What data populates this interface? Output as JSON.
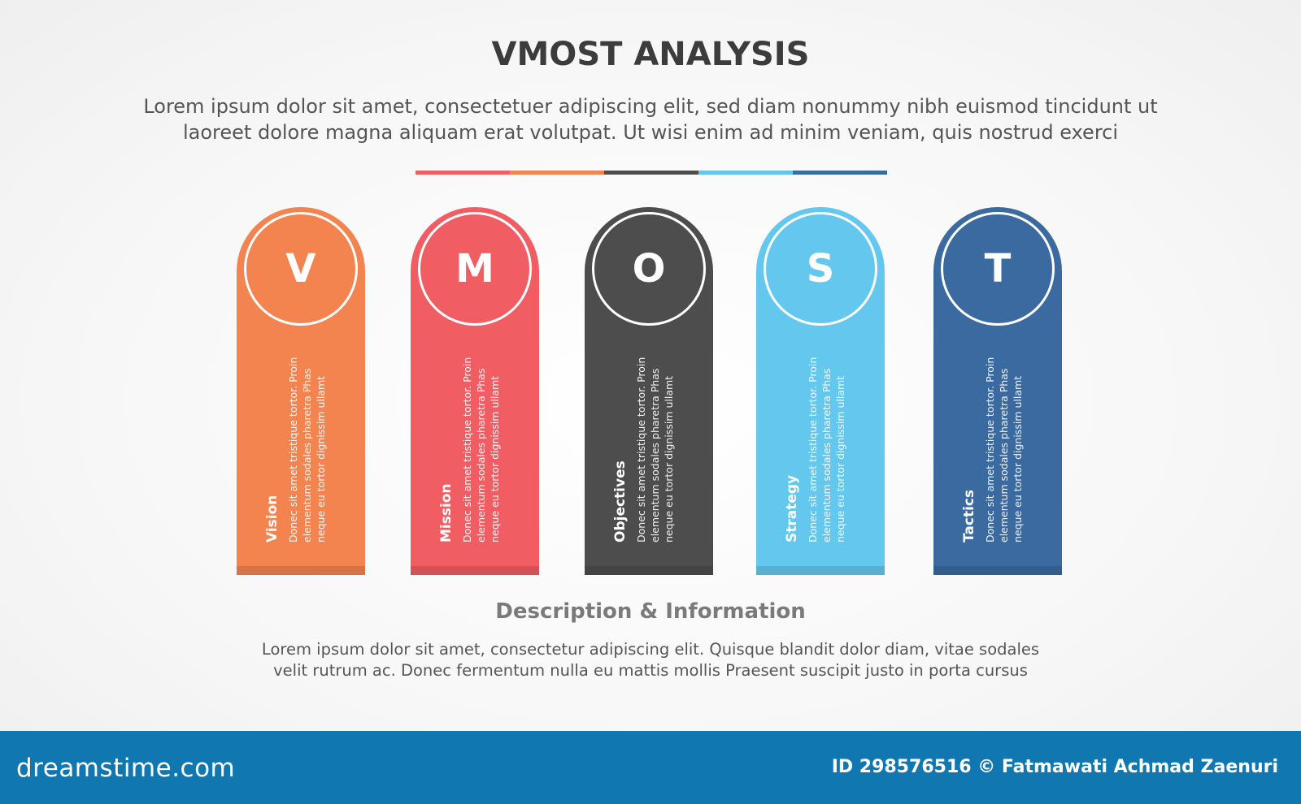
{
  "title": "VMOST ANALYSIS",
  "subtitle": [
    "Lorem ipsum dolor sit amet, consectetuer adipiscing elit, sed diam nonummy nibh euismod tincidunt ut",
    "laoreet dolore magna aliquam erat volutpat. Ut wisi enim ad minim veniam, quis nostrud exerci"
  ],
  "color_bar": [
    "#ef5f64",
    "#f4844f",
    "#4d4d4d",
    "#62c7ed",
    "#3a6aa0"
  ],
  "cards": [
    {
      "letter": "V",
      "title": "Vision",
      "color": "#f4844f",
      "body": [
        "Donec sit amet tristique tortor. Proin",
        "elementum sodales pharetra Phas",
        "neque eu tortor dignissim ullamt"
      ]
    },
    {
      "letter": "M",
      "title": "Mission",
      "color": "#f05e64",
      "body": [
        "Donec sit amet tristique tortor. Proin",
        "elementum sodales pharetra Phas",
        "neque eu tortor dignissim ullamt"
      ]
    },
    {
      "letter": "O",
      "title": "Objectives",
      "color": "#4d4d4d",
      "body": [
        "Donec sit amet tristique tortor. Proin",
        "elementum sodales pharetra Phas",
        "neque eu tortor dignissim ullamt"
      ]
    },
    {
      "letter": "S",
      "title": "Strategy",
      "color": "#64c8ee",
      "body": [
        "Donec sit amet tristique tortor. Proin",
        "elementum sodales pharetra Phas",
        "neque eu tortor dignissim ullamt"
      ]
    },
    {
      "letter": "T",
      "title": "Tactics",
      "color": "#3a6aa0",
      "body": [
        "Donec sit amet tristique tortor. Proin",
        "elementum sodales pharetra Phas",
        "neque eu tortor dignissim ullamt"
      ]
    }
  ],
  "description": {
    "title": "Description & Information",
    "body": [
      "Lorem ipsum dolor sit amet, consectetur adipiscing elit. Quisque blandit dolor diam, vitae sodales",
      "velit rutrum ac. Donec fermentum nulla eu mattis mollis Praesent suscipit justo in porta cursus"
    ]
  },
  "footer": {
    "logo": "dreamstime.com",
    "credit": "ID 298576516 © Fatmawati  Achmad Zaenuri",
    "color": "#1177b0"
  }
}
